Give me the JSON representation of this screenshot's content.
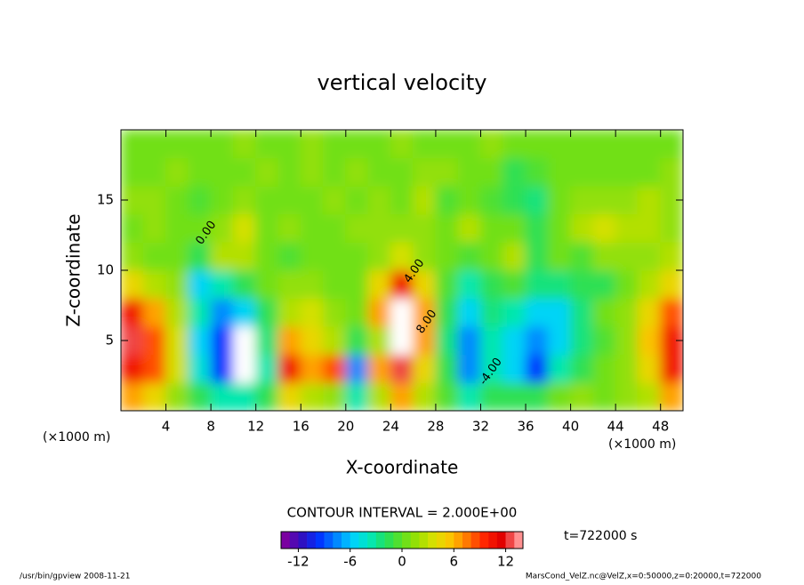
{
  "chart_data": {
    "type": "contour",
    "title": "vertical velocity",
    "x_label": "X-coordinate",
    "y_label": "Z-coordinate",
    "x_unit": "(×1000 m)",
    "y_unit": "(×1000 m)",
    "xlim": [
      0,
      50
    ],
    "xticks": [
      4,
      8,
      12,
      16,
      20,
      24,
      28,
      32,
      36,
      40,
      44,
      48
    ],
    "ylim": [
      0,
      20
    ],
    "yticks": [
      5,
      10,
      15
    ],
    "x": [
      1,
      3,
      5,
      7,
      9,
      11,
      13,
      15,
      17,
      19,
      21,
      23,
      25,
      27,
      29,
      31,
      33,
      35,
      37,
      39,
      41,
      43,
      45,
      47,
      49
    ],
    "y": [
      1,
      3,
      5,
      7,
      9,
      11,
      13,
      15,
      17,
      19
    ],
    "z": [
      [
        6,
        4,
        1,
        -2,
        -4,
        -4,
        -2,
        4,
        2,
        1,
        -4,
        2,
        6,
        2,
        -1,
        -4,
        -2,
        -2,
        -2,
        0,
        1,
        0,
        1,
        2,
        6
      ],
      [
        10,
        8,
        3,
        -5,
        -10,
        -16,
        -4,
        10,
        6,
        8,
        -8,
        6,
        12,
        4,
        -2,
        -8,
        -4,
        -6,
        -10,
        -4,
        -2,
        0,
        1,
        4,
        10
      ],
      [
        12,
        8,
        3,
        -6,
        -10,
        -16,
        -3,
        6,
        4,
        2,
        -2,
        2,
        16,
        6,
        -3,
        -8,
        -4,
        -6,
        -8,
        -6,
        -3,
        -1,
        1,
        5,
        10
      ],
      [
        10,
        6,
        2,
        -4,
        -8,
        -6,
        -2,
        2,
        3,
        1,
        0,
        6,
        16,
        6,
        -2,
        -6,
        -3,
        -4,
        -6,
        -6,
        -3,
        0,
        1,
        4,
        8
      ],
      [
        4,
        2,
        1,
        -6,
        -4,
        -2,
        0,
        1,
        1,
        0,
        0,
        4,
        10,
        4,
        -1,
        -4,
        -2,
        -1,
        -3,
        -3,
        -2,
        -2,
        0,
        2,
        4
      ],
      [
        1,
        0,
        0,
        -2,
        2,
        2,
        0,
        -1,
        0,
        0,
        0,
        1,
        3,
        1,
        0,
        -1,
        0,
        2,
        -2,
        0,
        -1,
        1,
        1,
        1,
        2
      ],
      [
        0,
        1,
        0,
        0,
        1,
        3,
        0,
        1,
        0,
        0,
        1,
        1,
        1,
        1,
        0,
        2,
        0,
        0,
        -2,
        0,
        2,
        3,
        2,
        2,
        1
      ],
      [
        1,
        1,
        0,
        -1,
        0,
        1,
        0,
        0,
        0,
        1,
        0,
        1,
        0,
        2,
        -1,
        0,
        -1,
        -2,
        -3,
        0,
        1,
        1,
        1,
        2,
        1
      ],
      [
        0,
        0,
        1,
        0,
        0,
        0,
        1,
        0,
        1,
        0,
        1,
        0,
        0,
        1,
        1,
        0,
        0,
        -2,
        -1,
        0,
        0,
        0,
        0,
        0,
        1
      ],
      [
        0,
        0,
        0,
        0,
        0,
        1,
        0,
        0,
        1,
        0,
        0,
        0,
        1,
        0,
        0,
        0,
        1,
        0,
        0,
        0,
        0,
        0,
        0,
        0,
        0
      ]
    ],
    "clim": [
      -14,
      14
    ],
    "cticks": [
      -12,
      -6,
      0,
      6,
      12
    ],
    "colormap": [
      "#7a00a0",
      "#3010c0",
      "#0030ff",
      "#0080ff",
      "#00d0ff",
      "#00e8c0",
      "#20e060",
      "#60e020",
      "#a0e000",
      "#e0e000",
      "#ffc000",
      "#ff7000",
      "#ff2000",
      "#e00000",
      "#ff9090"
    ],
    "out_of_range_color": "#ffffff",
    "contour_labels": [
      "0.00",
      "4.00",
      "8.00",
      "-4.00"
    ],
    "contour_interval": "CONTOUR INTERVAL = 2.000E+00",
    "time_label": "t=722000 s",
    "footer_left": "/usr/bin/gpview   2008-11-21",
    "footer_right": "MarsCond_VelZ.nc@VelZ,x=0:50000,z=0:20000,t=722000"
  }
}
